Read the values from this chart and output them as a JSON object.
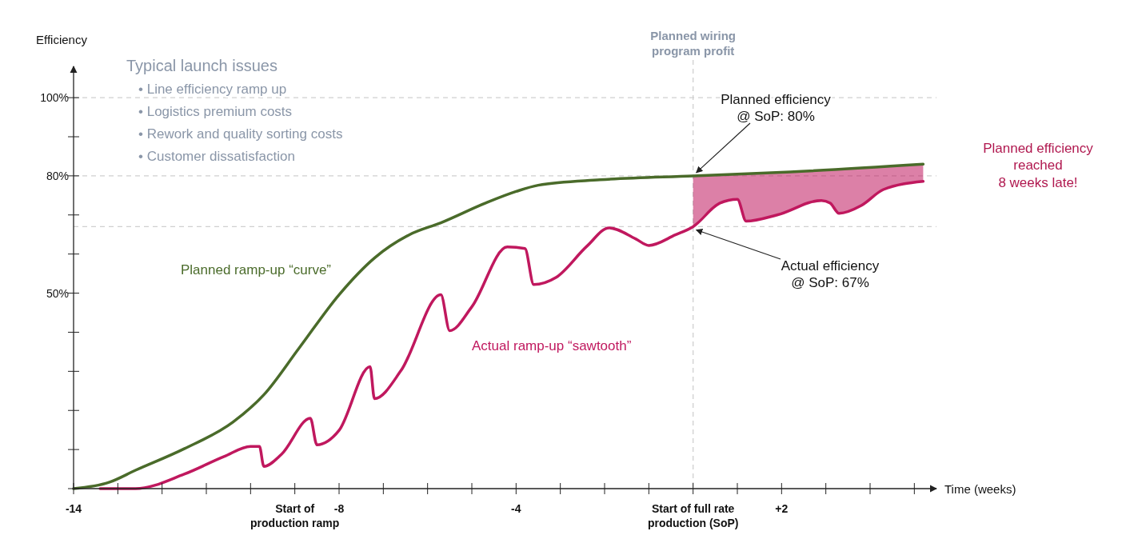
{
  "chart_data": {
    "type": "line",
    "xlabel": "Time (weeks)",
    "ylabel": "Efficiency",
    "xlim": [
      -14,
      5.5
    ],
    "ylim": [
      0,
      108
    ],
    "xticks": [
      -14,
      {
        "value": -13,
        "label": null
      },
      {
        "value": -12,
        "label": null
      },
      {
        "value": -11,
        "label": null
      },
      {
        "value": -10,
        "label": null
      },
      {
        "value": -9,
        "label": "Start of\nproduction ramp"
      },
      -8,
      {
        "value": -7,
        "label": null
      },
      {
        "value": -6,
        "label": null
      },
      {
        "value": -5,
        "label": null
      },
      -4,
      {
        "value": -3,
        "label": null
      },
      {
        "value": -2,
        "label": null
      },
      {
        "value": -1,
        "label": null
      },
      {
        "value": 0,
        "label": "Start of full rate\nproduction (SoP)"
      },
      {
        "value": 1,
        "label": null
      },
      {
        "value": 2,
        "label": "+2"
      },
      {
        "value": 3,
        "label": null
      },
      {
        "value": 4,
        "label": null
      },
      {
        "value": 5,
        "label": null
      }
    ],
    "yticks": [
      {
        "value": 0,
        "label": null
      },
      {
        "value": 10,
        "label": null
      },
      {
        "value": 20,
        "label": null
      },
      {
        "value": 30,
        "label": null
      },
      {
        "value": 40,
        "label": null
      },
      {
        "value": 50,
        "label": "50%"
      },
      {
        "value": 60,
        "label": null
      },
      {
        "value": 70,
        "label": null
      },
      {
        "value": 80,
        "label": "80%"
      },
      {
        "value": 90,
        "label": null
      },
      {
        "value": 100,
        "label": "100%"
      }
    ],
    "series": [
      {
        "name": "Planned ramp-up “curve”",
        "color": "#4a6b2a",
        "x": [
          -14,
          -13.2,
          -12.6,
          -11.5,
          -10.4,
          -9.7,
          -8.9,
          -8,
          -7.2,
          -6.4,
          -5.7,
          -4.7,
          -4,
          -3.5,
          -2.1,
          0,
          2.2,
          5.2
        ],
        "values": [
          0,
          1.6,
          4.7,
          10.2,
          17,
          24,
          36,
          49.6,
          59,
          65,
          68,
          73,
          76,
          77.6,
          79,
          80,
          81,
          83
        ]
      },
      {
        "name": "Actual ramp-up “sawtooth”",
        "color": "#c0185e",
        "x": [
          -13.4,
          -12.6,
          -11.5,
          -10.6,
          -10,
          -9.8,
          -9.7,
          -9.3,
          -8.65,
          -8.5,
          -8,
          -7.3,
          -7.2,
          -6.6,
          -5.7,
          -5.5,
          -5,
          -4.2,
          -3.8,
          -3.6,
          -3.1,
          -2.4,
          -1.9,
          -1.3,
          -1,
          -0.4,
          0,
          0.6,
          1,
          1.2,
          1.9,
          2.9,
          3.1,
          3.3,
          3.8,
          4.3,
          5.2
        ],
        "values": [
          0,
          0,
          3.7,
          8.2,
          10.8,
          10.8,
          5.7,
          8.8,
          18,
          11.2,
          14.9,
          31.2,
          23,
          30.2,
          49.6,
          40.4,
          46.5,
          61.8,
          61.4,
          52.2,
          54,
          62,
          66.7,
          63.9,
          62.2,
          64.9,
          67,
          73,
          74,
          68.4,
          70,
          73.7,
          73,
          70.4,
          72.4,
          76.5,
          78.6
        ],
        "lower": [
          null,
          null,
          null,
          null,
          null,
          null,
          null,
          null,
          null,
          null,
          null,
          null,
          null,
          null,
          null,
          null,
          null,
          null,
          null,
          null,
          null,
          null,
          null,
          null,
          null,
          null,
          67,
          73,
          74,
          68.4,
          70,
          73.7,
          73,
          70.4,
          72.4,
          76.5,
          78.6
        ],
        "upper": [
          null,
          null,
          null,
          null,
          null,
          null,
          null,
          null,
          null,
          null,
          null,
          null,
          null,
          null,
          null,
          null,
          null,
          null,
          null,
          null,
          null,
          null,
          null,
          null,
          null,
          null,
          80,
          80.3,
          80.5,
          80.6,
          81,
          81.6,
          81.7,
          81.8,
          82.1,
          82.4,
          83
        ]
      }
    ],
    "ref_lines": [
      {
        "axis": "y",
        "value": 100,
        "color": "#d0d0d0",
        "line_style": "dashed"
      },
      {
        "axis": "y",
        "value": 80,
        "color": "#d0d0d0",
        "line_style": "dashed"
      },
      {
        "axis": "y",
        "value": 67,
        "color": "#d0d0d0",
        "line_style": "dashed"
      },
      {
        "axis": "x",
        "value": 0,
        "label": "Planned wiring\nprogram profit",
        "color": "#d0d0d0",
        "line_style": "dashed"
      }
    ],
    "annotations": [
      "Typical launch issues",
      "• Line efficiency ramp up",
      "• Logistics premium costs",
      "• Rework and quality sorting costs",
      "• Customer dissatisfaction",
      {
        "text": "Planned efficiency\n@ SoP: 80%",
        "x": 0,
        "y": 80
      },
      {
        "text": "Actual efficiency\n@ SoP: 67%",
        "x": 0,
        "y": 67
      },
      "Planned efficiency\nreached\n8 weeks late!"
    ],
    "grid": false,
    "legend": false,
    "marker": "none",
    "line_style": "solid"
  }
}
